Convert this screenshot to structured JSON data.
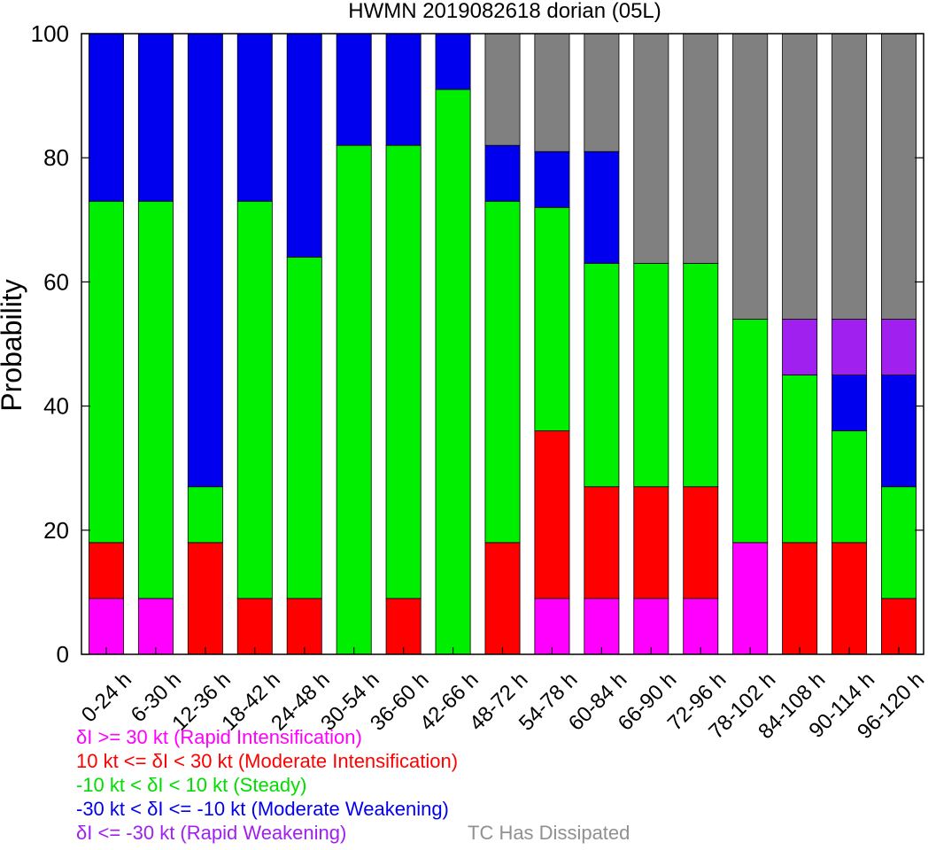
{
  "chart_data": {
    "type": "bar",
    "stacked": true,
    "title": "HWMN 2019082618 dorian (05L)",
    "xlabel": "",
    "ylabel": "Probability",
    "ylim": [
      0,
      100
    ],
    "yticks": [
      0,
      20,
      40,
      60,
      80,
      100
    ],
    "grid": false,
    "categories": [
      "0-24 h",
      "6-30 h",
      "12-36 h",
      "18-42 h",
      "24-48 h",
      "30-54 h",
      "36-60 h",
      "42-66 h",
      "48-72 h",
      "54-78 h",
      "60-84 h",
      "66-90 h",
      "72-96 h",
      "78-102 h",
      "84-108 h",
      "90-114 h",
      "96-120 h"
    ],
    "series": [
      {
        "key": "ri",
        "color": "#ff00ff",
        "values": [
          9,
          9,
          0,
          0,
          0,
          0,
          0,
          0,
          0,
          9,
          9,
          9,
          9,
          18,
          0,
          0,
          0
        ]
      },
      {
        "key": "mi",
        "color": "#ff0000",
        "values": [
          9,
          0,
          18,
          9,
          9,
          0,
          9,
          0,
          18,
          27,
          18,
          18,
          18,
          0,
          18,
          18,
          9
        ]
      },
      {
        "key": "st",
        "color": "#00ee00",
        "values": [
          55,
          64,
          9,
          64,
          55,
          82,
          73,
          91,
          55,
          36,
          36,
          36,
          36,
          36,
          27,
          18,
          18
        ]
      },
      {
        "key": "mw",
        "color": "#0000ee",
        "values": [
          27,
          27,
          73,
          27,
          36,
          18,
          18,
          9,
          9,
          9,
          18,
          0,
          0,
          0,
          0,
          9,
          18
        ]
      },
      {
        "key": "rw",
        "color": "#a020f0",
        "values": [
          0,
          0,
          0,
          0,
          0,
          0,
          0,
          0,
          0,
          0,
          0,
          0,
          0,
          0,
          9,
          9,
          9
        ]
      },
      {
        "key": "td",
        "color": "#808080",
        "values": [
          0,
          0,
          0,
          0,
          0,
          0,
          0,
          0,
          18,
          19,
          19,
          37,
          37,
          46,
          46,
          46,
          46
        ]
      }
    ]
  },
  "legend": [
    {
      "text": "δI >= 30 kt (Rapid Intensification)",
      "color": "#ff00ff"
    },
    {
      "text": "10 kt <= δI < 30 kt (Moderate Intensification)",
      "color": "#ff0000"
    },
    {
      "text": "-10 kt < δI < 10 kt (Steady)",
      "color": "#00dd00"
    },
    {
      "text": "-30 kt < δI <= -10 kt (Moderate Weakening)",
      "color": "#0000ee"
    },
    {
      "text": "δI <= -30 kt (Rapid Weakening)",
      "color": "#a020f0"
    },
    {
      "text": "TC Has Dissipated",
      "color": "#909090"
    }
  ]
}
